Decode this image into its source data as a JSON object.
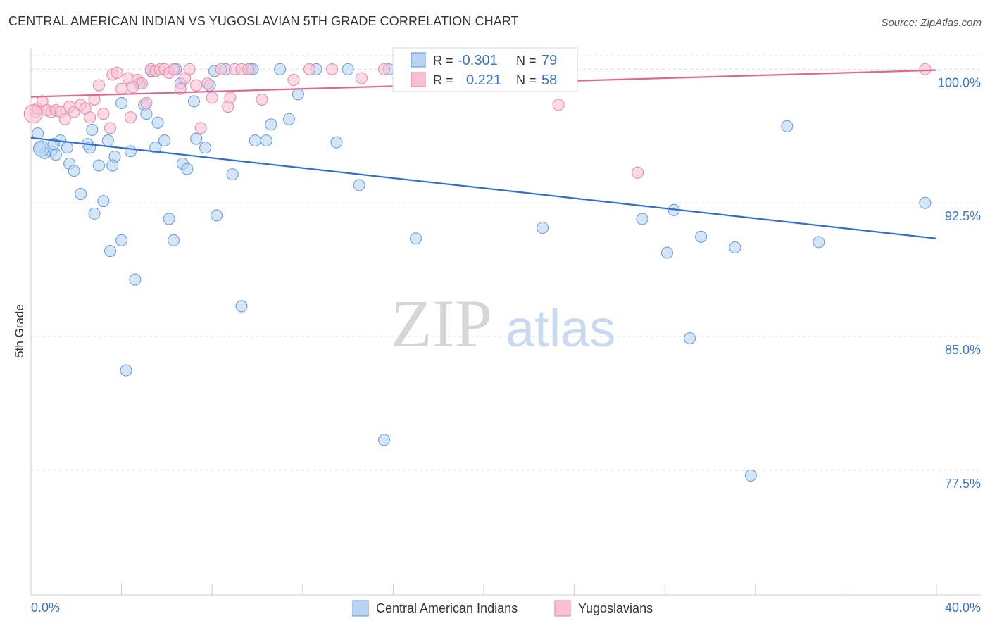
{
  "title": "CENTRAL AMERICAN INDIAN VS YUGOSLAVIAN 5TH GRADE CORRELATION CHART",
  "source": "Source: ZipAtlas.com",
  "watermark": {
    "zip": "ZIP",
    "atlas": "atlas"
  },
  "colors": {
    "blue_fill": "#b9d3f3",
    "blue_stroke": "#6c9fdc",
    "blue_line": "#2f6fd0",
    "pink_fill": "#f8c1d3",
    "pink_stroke": "#e98aa9",
    "pink_line": "#e0678f",
    "value_text": "#3a76c8",
    "grid": "#dcdcdc",
    "axis": "#cccccc"
  },
  "legend": {
    "rows": [
      {
        "r_label": "R =",
        "r_value": "-0.301",
        "n_label": "N =",
        "n_value": "79"
      },
      {
        "r_label": "R =",
        "r_value": "0.221",
        "n_label": "N =",
        "n_value": "58"
      }
    ]
  },
  "chart_data": {
    "type": "scatter",
    "title": "CENTRAL AMERICAN INDIAN VS YUGOSLAVIAN 5TH GRADE CORRELATION CHART",
    "xlabel": "",
    "ylabel": "5th Grade",
    "xlim": [
      0,
      40
    ],
    "ylim": [
      70.5,
      101.2
    ],
    "x_tick_labels": [
      {
        "value": 0,
        "label": "0.0%"
      },
      {
        "value": 40,
        "label": "40.0%"
      }
    ],
    "y_tick_labels": [
      {
        "value": 100,
        "label": "100.0%"
      },
      {
        "value": 92.5,
        "label": "92.5%"
      },
      {
        "value": 85,
        "label": "85.0%"
      },
      {
        "value": 77.5,
        "label": "77.5%"
      }
    ],
    "grid": true,
    "legend_position": "bottom",
    "series": [
      {
        "name": "Central American Indians",
        "color": "#6c9fdc",
        "trend": {
          "x0": 0,
          "y0": 96.15,
          "x1": 40,
          "y1": 90.5
        },
        "points": [
          [
            0.3,
            96.4
          ],
          [
            1.3,
            96.0
          ],
          [
            0.9,
            95.4
          ],
          [
            1.6,
            95.6
          ],
          [
            1.1,
            95.2
          ],
          [
            0.6,
            95.3
          ],
          [
            1.7,
            94.7
          ],
          [
            1.9,
            94.3
          ],
          [
            2.5,
            95.8
          ],
          [
            2.6,
            95.6
          ],
          [
            3.0,
            94.6
          ],
          [
            2.7,
            96.6
          ],
          [
            3.4,
            96.0
          ],
          [
            3.7,
            95.1
          ],
          [
            3.6,
            94.6
          ],
          [
            4.4,
            95.4
          ],
          [
            4.0,
            98.1
          ],
          [
            4.8,
            99.2
          ],
          [
            5.0,
            98.0
          ],
          [
            5.1,
            97.5
          ],
          [
            5.6,
            97.0
          ],
          [
            5.3,
            99.9
          ],
          [
            5.5,
            95.6
          ],
          [
            5.9,
            96.0
          ],
          [
            6.6,
            99.2
          ],
          [
            6.7,
            94.7
          ],
          [
            6.9,
            94.4
          ],
          [
            7.2,
            98.2
          ],
          [
            7.3,
            96.1
          ],
          [
            7.7,
            95.6
          ],
          [
            7.9,
            99.1
          ],
          [
            8.1,
            99.9
          ],
          [
            8.6,
            100.0
          ],
          [
            8.9,
            94.1
          ],
          [
            9.7,
            100.0
          ],
          [
            9.9,
            96.0
          ],
          [
            10.4,
            96.0
          ],
          [
            10.6,
            96.9
          ],
          [
            11.0,
            100.0
          ],
          [
            11.4,
            97.2
          ],
          [
            11.8,
            98.6
          ],
          [
            12.6,
            100.0
          ],
          [
            13.5,
            95.9
          ],
          [
            14.5,
            93.5
          ],
          [
            18.0,
            100.0
          ],
          [
            19.5,
            100.0
          ],
          [
            23.0,
            100.0
          ],
          [
            33.4,
            96.8
          ],
          [
            39.5,
            92.5
          ],
          [
            2.2,
            93.0
          ],
          [
            3.2,
            92.6
          ],
          [
            2.8,
            91.9
          ],
          [
            4.0,
            90.4
          ],
          [
            3.5,
            89.8
          ],
          [
            6.1,
            91.6
          ],
          [
            6.3,
            90.4
          ],
          [
            8.2,
            91.8
          ],
          [
            4.6,
            88.2
          ],
          [
            9.3,
            86.7
          ],
          [
            17.0,
            90.5
          ],
          [
            22.6,
            91.1
          ],
          [
            27.0,
            91.6
          ],
          [
            28.4,
            92.1
          ],
          [
            28.1,
            89.7
          ],
          [
            29.6,
            90.6
          ],
          [
            31.1,
            90.0
          ],
          [
            34.8,
            90.3
          ],
          [
            29.1,
            84.9
          ],
          [
            4.2,
            83.1
          ],
          [
            15.6,
            79.2
          ],
          [
            31.8,
            77.2
          ],
          [
            19.0,
            100.0
          ],
          [
            0.4,
            95.6
          ],
          [
            1.0,
            95.8
          ],
          [
            9.8,
            100.0
          ],
          [
            14.0,
            100.0
          ],
          [
            6.4,
            100.0
          ],
          [
            15.8,
            100.0
          ],
          [
            17.8,
            100.0
          ]
        ]
      },
      {
        "name": "Yugoslavians",
        "color": "#e98aa9",
        "trend": {
          "x0": 0,
          "y0": 98.45,
          "x1": 40,
          "y1": 99.95
        },
        "points": [
          [
            0.2,
            97.6
          ],
          [
            0.3,
            97.8
          ],
          [
            0.5,
            98.2
          ],
          [
            0.7,
            97.7
          ],
          [
            0.9,
            97.6
          ],
          [
            1.1,
            97.7
          ],
          [
            1.3,
            97.6
          ],
          [
            1.5,
            97.2
          ],
          [
            1.7,
            97.9
          ],
          [
            1.9,
            97.6
          ],
          [
            2.2,
            98.0
          ],
          [
            2.4,
            97.8
          ],
          [
            2.6,
            97.3
          ],
          [
            2.8,
            98.3
          ],
          [
            3.0,
            99.1
          ],
          [
            3.2,
            97.5
          ],
          [
            3.5,
            96.7
          ],
          [
            3.6,
            99.7
          ],
          [
            3.8,
            99.8
          ],
          [
            4.0,
            98.9
          ],
          [
            4.3,
            99.5
          ],
          [
            4.4,
            97.3
          ],
          [
            4.7,
            99.4
          ],
          [
            4.9,
            99.2
          ],
          [
            5.1,
            98.1
          ],
          [
            5.3,
            100.0
          ],
          [
            5.5,
            99.9
          ],
          [
            5.7,
            100.0
          ],
          [
            5.9,
            100.0
          ],
          [
            6.1,
            99.8
          ],
          [
            6.3,
            100.0
          ],
          [
            6.6,
            98.9
          ],
          [
            6.8,
            99.5
          ],
          [
            7.0,
            100.0
          ],
          [
            7.3,
            99.1
          ],
          [
            7.5,
            96.7
          ],
          [
            7.8,
            99.2
          ],
          [
            8.0,
            98.4
          ],
          [
            8.4,
            100.0
          ],
          [
            8.7,
            97.9
          ],
          [
            9.0,
            100.0
          ],
          [
            9.3,
            100.0
          ],
          [
            9.6,
            100.0
          ],
          [
            10.2,
            98.3
          ],
          [
            11.6,
            99.4
          ],
          [
            12.3,
            100.0
          ],
          [
            13.3,
            100.0
          ],
          [
            14.6,
            99.5
          ],
          [
            15.6,
            100.0
          ],
          [
            17.5,
            100.0
          ],
          [
            18.5,
            99.5
          ],
          [
            20.5,
            100.0
          ],
          [
            21.5,
            99.9
          ],
          [
            23.3,
            98.0
          ],
          [
            26.8,
            94.2
          ],
          [
            39.5,
            100.0
          ],
          [
            8.8,
            98.4
          ],
          [
            4.5,
            99.0
          ]
        ]
      }
    ]
  },
  "bottom_legend": [
    "Central American Indians",
    "Yugoslavians"
  ]
}
